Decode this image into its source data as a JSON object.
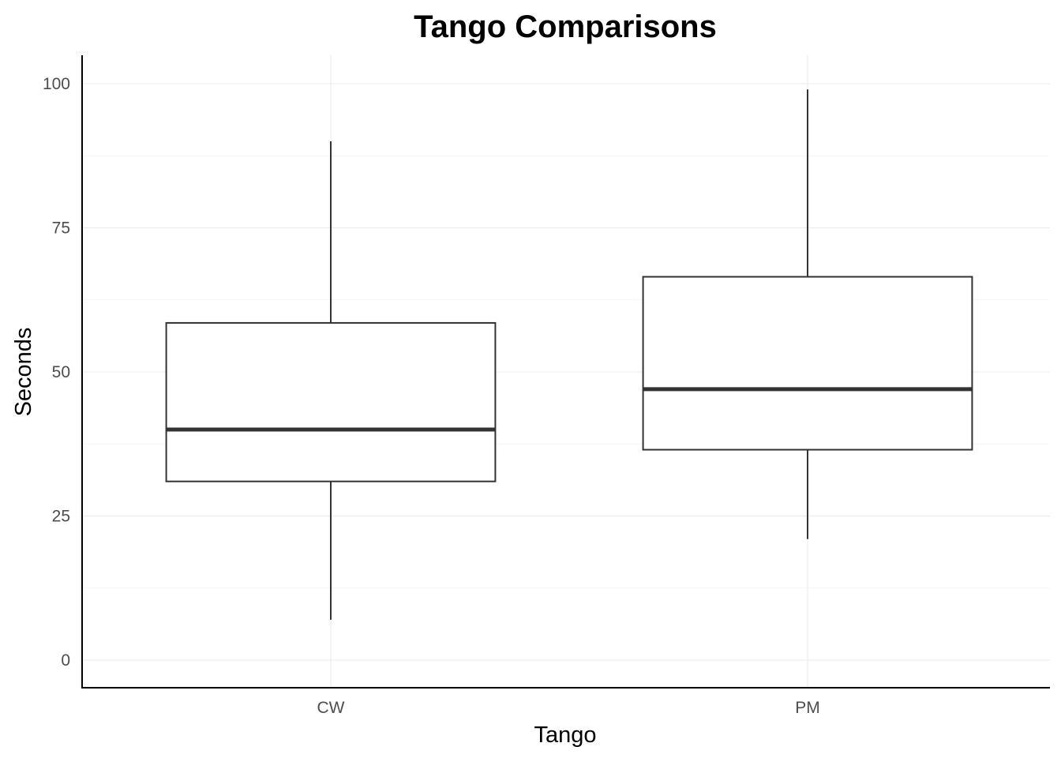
{
  "chart_data": {
    "type": "boxplot",
    "title": "Tango Comparisons",
    "xlabel": "Tango",
    "ylabel": "Seconds",
    "categories": [
      "CW",
      "PM"
    ],
    "boxes": [
      {
        "category": "CW",
        "whisker_low": 7,
        "q1": 31,
        "median": 40,
        "q3": 58.5,
        "whisker_high": 90
      },
      {
        "category": "PM",
        "whisker_low": 21,
        "q1": 36.5,
        "median": 47,
        "q3": 66.5,
        "whisker_high": 99
      }
    ],
    "y_ticks": [
      0,
      25,
      50,
      75,
      100
    ],
    "y_minor_ticks": [
      12.5,
      37.5,
      62.5,
      87.5
    ],
    "ylim": [
      -4.6,
      105
    ],
    "grid": true,
    "legend": "none",
    "colors": {
      "box_stroke": "#333333",
      "box_fill": "#ffffff",
      "grid": "#ebebeb",
      "tick_text": "#4d4d4d"
    }
  }
}
